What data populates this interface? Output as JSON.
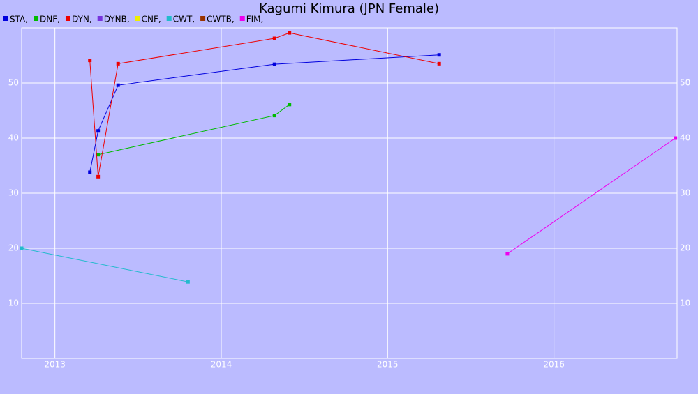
{
  "chart_data": {
    "type": "line",
    "title": "Kagumi Kimura (JPN Female)",
    "xlim": [
      2012.8,
      2016.74
    ],
    "xticks": [
      2013,
      2014,
      2015,
      2016
    ],
    "ylim": [
      0,
      60
    ],
    "yticks": [
      10,
      20,
      30,
      40,
      50
    ],
    "grid": true,
    "series": [
      {
        "name": "STA,",
        "color": "#0000dd",
        "x": [
          2013.21,
          2013.26,
          2013.38,
          2014.32,
          2015.31
        ],
        "values": [
          33.8,
          41.3,
          49.6,
          53.4,
          55.1
        ]
      },
      {
        "name": "DNF,",
        "color": "#00bb00",
        "x": [
          2013.26,
          2014.32,
          2014.41
        ],
        "values": [
          37.0,
          44.1,
          46.1
        ]
      },
      {
        "name": "DYN,",
        "color": "#ee0000",
        "x": [
          2013.21,
          2013.26,
          2013.38,
          2014.32,
          2014.41,
          2015.31
        ],
        "values": [
          54.1,
          33.0,
          53.5,
          58.1,
          59.1,
          53.5
        ]
      },
      {
        "name": "DYNB,",
        "color": "#7733dd",
        "x": [],
        "values": []
      },
      {
        "name": "CNF,",
        "color": "#eeee00",
        "x": [],
        "values": []
      },
      {
        "name": "CWT,",
        "color": "#22bbcc",
        "x": [
          2012.8,
          2013.8
        ],
        "values": [
          20.0,
          13.9
        ]
      },
      {
        "name": "CWTB,",
        "color": "#993300",
        "x": [],
        "values": []
      },
      {
        "name": "FIM,",
        "color": "#ee00ee",
        "x": [
          2015.72,
          2016.73
        ],
        "values": [
          19.0,
          40.0
        ]
      }
    ]
  }
}
